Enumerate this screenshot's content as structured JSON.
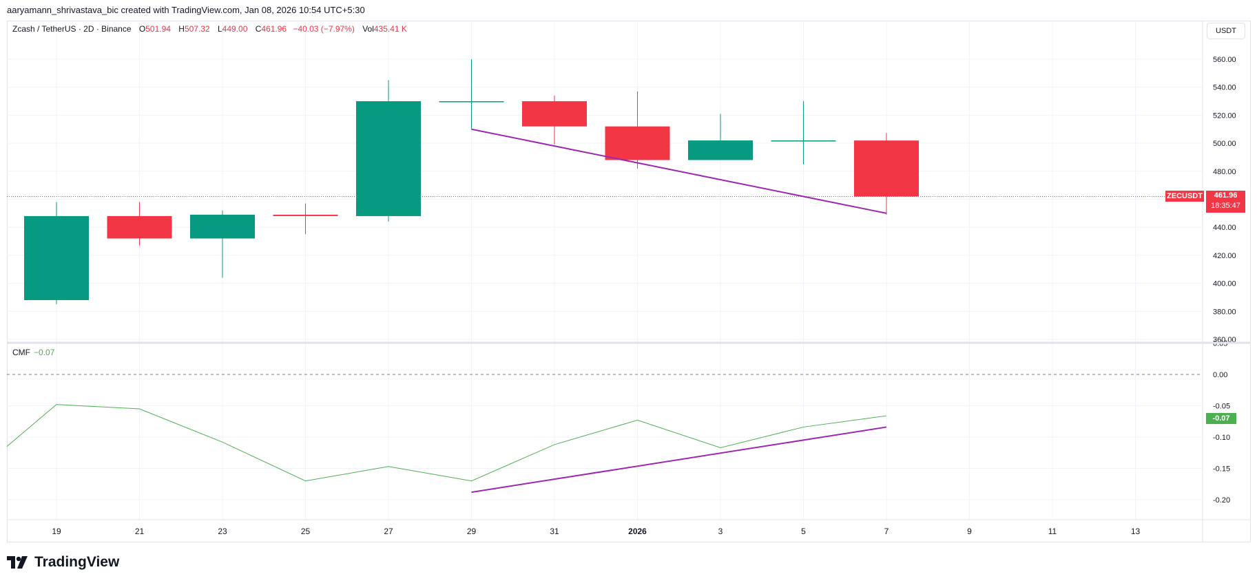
{
  "caption": "aaryamann_shrivastava_bic created with TradingView.com, Jan 08, 2026 10:54 UTC+5:30",
  "legend": {
    "symbol": "Zcash / TetherUS · 2D · Binance",
    "open_label": "O",
    "open": "501.94",
    "high_label": "H",
    "high": "507.32",
    "low_label": "L",
    "low": "449.00",
    "close_label": "C",
    "close": "461.96",
    "change": "−40.03 (−7.97%)",
    "vol_label": "Vol",
    "vol": "435.41 K"
  },
  "currency_button": "USDT",
  "last_price": {
    "ticker": "ZECUSDT",
    "price": "461.96",
    "countdown": "18:35:47"
  },
  "cmf": {
    "label": "CMF",
    "value": "−0.07",
    "tag": "-0.07"
  },
  "brand": {
    "name": "TradingView"
  },
  "colors": {
    "up": "#089981",
    "down": "#f23645",
    "cmf_line": "#4caf50",
    "trendline": "#9c27b0",
    "grid": "#f0f3fa",
    "axis_text": "#131722"
  },
  "chart_data": [
    {
      "type": "candlestick",
      "title": "Zcash / TetherUS · 2D · Binance",
      "x": [
        "19",
        "21",
        "23",
        "25",
        "27",
        "29",
        "31",
        "2026",
        "3",
        "5",
        "7"
      ],
      "x_ticks": [
        "19",
        "21",
        "23",
        "25",
        "27",
        "29",
        "31",
        "2026",
        "3",
        "5",
        "7",
        "9",
        "11",
        "13"
      ],
      "ohlc": [
        {
          "x": "19",
          "open": 388,
          "high": 458,
          "low": 385,
          "close": 448
        },
        {
          "x": "21",
          "open": 448,
          "high": 458,
          "low": 427,
          "close": 432
        },
        {
          "x": "23",
          "open": 432,
          "high": 452,
          "low": 404,
          "close": 449
        },
        {
          "x": "25",
          "open": 449,
          "high": 457,
          "low": 435,
          "close": 448
        },
        {
          "x": "27",
          "open": 448,
          "high": 545,
          "low": 444,
          "close": 530
        },
        {
          "x": "29",
          "open": 530,
          "high": 560,
          "low": 510,
          "close": 530
        },
        {
          "x": "31",
          "open": 530,
          "high": 534,
          "low": 499,
          "close": 512
        },
        {
          "x": "2026",
          "open": 512,
          "high": 537,
          "low": 482,
          "close": 488
        },
        {
          "x": "3",
          "open": 488,
          "high": 521,
          "low": 488,
          "close": 502
        },
        {
          "x": "5",
          "open": 502,
          "high": 530,
          "low": 485,
          "close": 502
        },
        {
          "x": "7",
          "open": 501.94,
          "high": 507.32,
          "low": 449.0,
          "close": 461.96
        }
      ],
      "y_ticks": [
        "360.00",
        "380.00",
        "400.00",
        "420.00",
        "440.00",
        "460.00",
        "480.00",
        "500.00",
        "520.00",
        "540.00",
        "560.00"
      ],
      "ylim": [
        360,
        570
      ],
      "last_price_line": 461.96,
      "trendline": {
        "from": {
          "x": "29",
          "y": 510
        },
        "to": {
          "x": "7",
          "y": 450
        }
      }
    },
    {
      "type": "line",
      "x": [
        "18",
        "19",
        "21",
        "23",
        "25",
        "27",
        "29",
        "31",
        "2026",
        "3",
        "5",
        "7"
      ],
      "series": [
        {
          "name": "CMF",
          "values": [
            -0.115,
            -0.048,
            -0.055,
            -0.108,
            -0.17,
            -0.147,
            -0.17,
            -0.112,
            -0.073,
            -0.117,
            -0.084,
            -0.066
          ]
        }
      ],
      "y_ticks": [
        "0.05",
        "0.00",
        "-0.05",
        "-0.10",
        "-0.15",
        "-0.20"
      ],
      "ylim": [
        -0.24,
        0.05
      ],
      "zero_line": 0.0,
      "trendline": {
        "from": {
          "x": "29",
          "y": -0.188
        },
        "to": {
          "x": "7",
          "y": -0.084
        }
      }
    }
  ]
}
